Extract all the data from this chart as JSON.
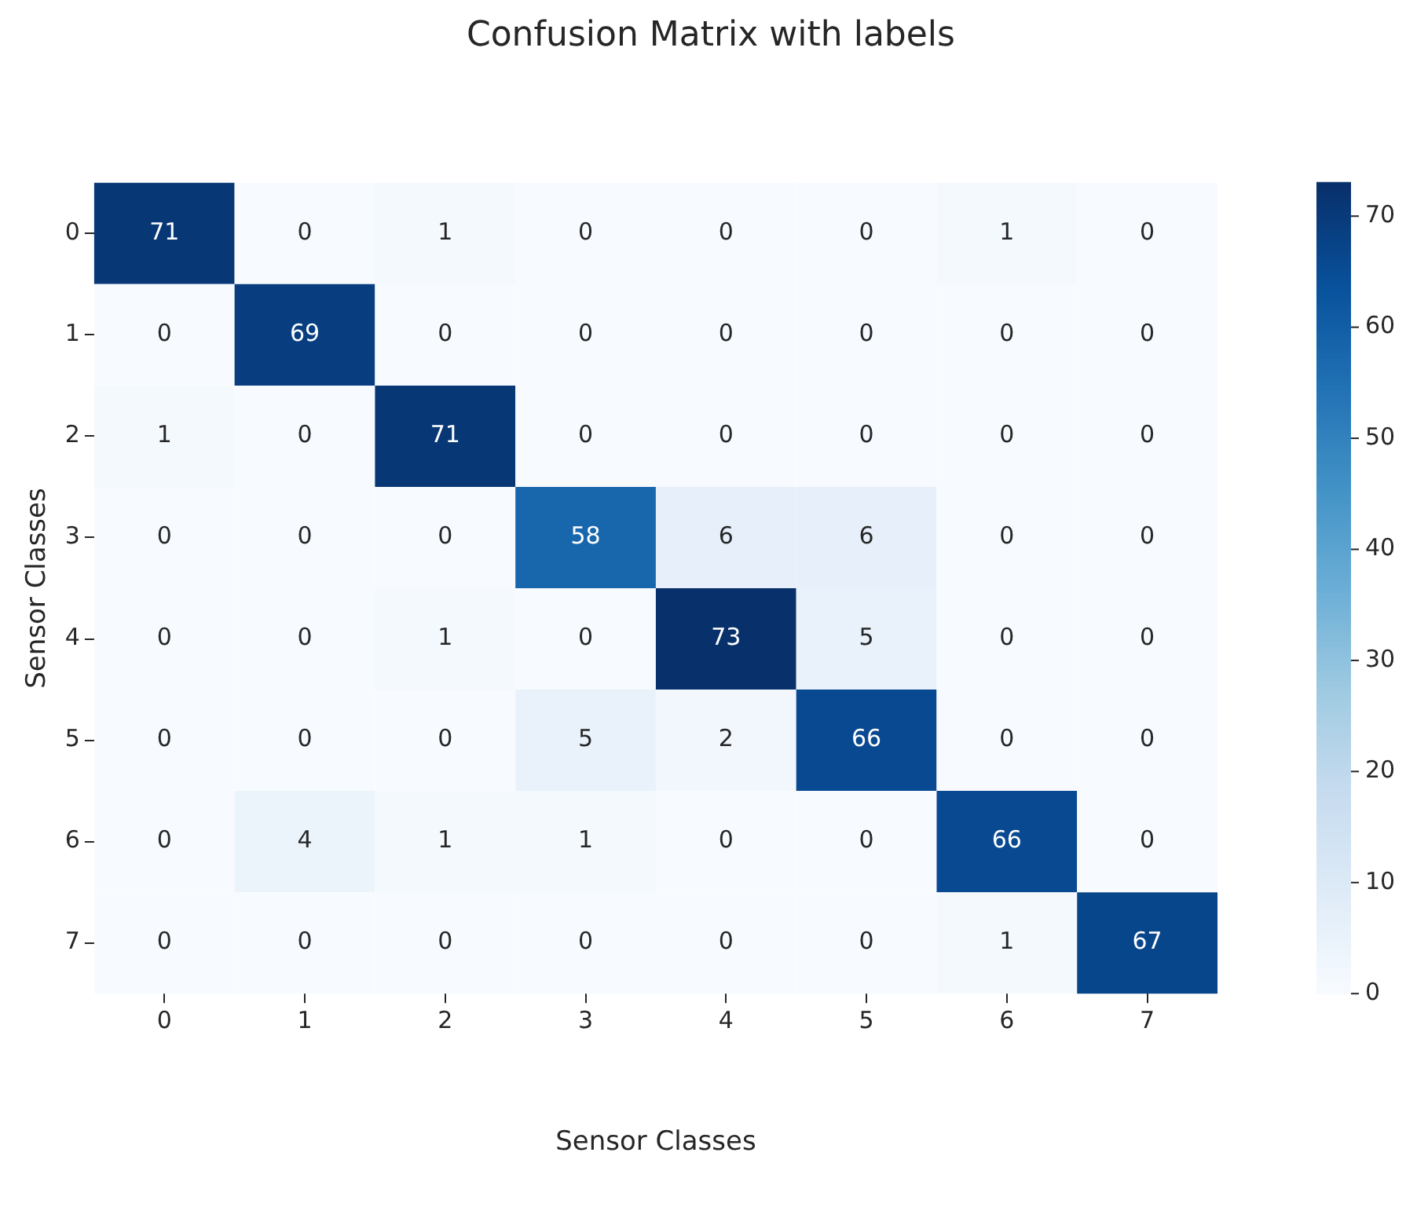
{
  "chart_data": {
    "type": "heatmap",
    "title": "Confusion Matrix with labels",
    "xlabel": "Sensor Classes",
    "ylabel": "Sensor Classes",
    "categories": [
      "0",
      "1",
      "2",
      "3",
      "4",
      "5",
      "6",
      "7"
    ],
    "y_categories": [
      "0",
      "1",
      "2",
      "3",
      "4",
      "5",
      "6",
      "7"
    ],
    "cells": [
      [
        71,
        0,
        1,
        0,
        0,
        0,
        1,
        0
      ],
      [
        0,
        69,
        0,
        0,
        0,
        0,
        0,
        0
      ],
      [
        1,
        0,
        71,
        0,
        0,
        0,
        0,
        0
      ],
      [
        0,
        0,
        0,
        58,
        6,
        6,
        0,
        0
      ],
      [
        0,
        0,
        1,
        0,
        73,
        5,
        0,
        0
      ],
      [
        0,
        0,
        0,
        5,
        2,
        66,
        0,
        0
      ],
      [
        0,
        4,
        1,
        1,
        0,
        0,
        66,
        0
      ],
      [
        0,
        0,
        0,
        0,
        0,
        0,
        1,
        67
      ]
    ],
    "clim": [
      0,
      73
    ],
    "cticks": [
      0,
      10,
      20,
      30,
      40,
      50,
      60,
      70
    ],
    "data_labels": true
  }
}
